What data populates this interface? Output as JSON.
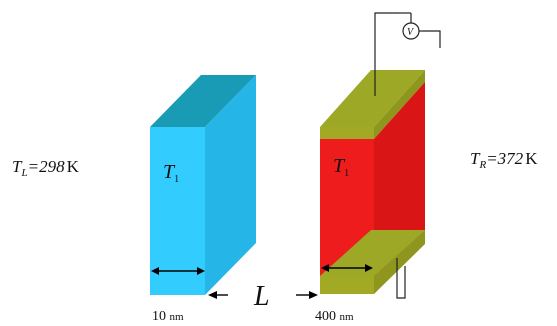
{
  "left_label": {
    "symbol": "T",
    "subscript": "L",
    "value": "=298",
    "unit": "K"
  },
  "right_label": {
    "symbol": "T",
    "subscript": "R",
    "value": "=372",
    "unit": "K"
  },
  "left_slab": {
    "symbol": "T",
    "subscript": "1",
    "thickness_value": "10",
    "thickness_unit": "nm",
    "colors": {
      "front": "#33CCFF",
      "side": "#25B5E6",
      "top": "#1A9BB5"
    }
  },
  "right_slab": {
    "symbol": "T",
    "subscript": "1",
    "thickness_value": "400",
    "thickness_unit": "nm",
    "colors": {
      "front": "#EE1C1C",
      "side": "#D91515",
      "top": "#E61919"
    },
    "electrode_colors": {
      "front": "#A1A925",
      "side": "#8E961E",
      "top": "#9EA827"
    }
  },
  "gap_label": "L",
  "voltmeter_symbol": "V"
}
